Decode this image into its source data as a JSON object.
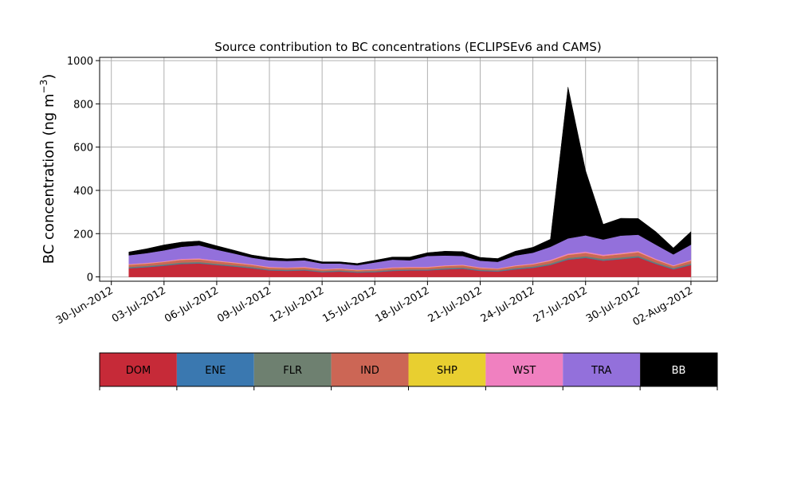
{
  "chart_data": {
    "type": "area",
    "stacked": true,
    "title": "Source contribution to BC concentrations (ECLIPSEv6 and CAMS)",
    "ylabel_main": "BC concentration (ng m",
    "ylabel_sup": "−3",
    "ylabel_close": ")",
    "ylim": [
      -20,
      1015
    ],
    "xlim": [
      "2012-06-29T08:00",
      "2012-08-03T12:00"
    ],
    "grid": true,
    "yticks": [
      0,
      200,
      400,
      600,
      800,
      1000
    ],
    "xticks": [
      {
        "date": "2012-06-30",
        "label": "30-Jun-2012"
      },
      {
        "date": "2012-07-03",
        "label": "03-Jul-2012"
      },
      {
        "date": "2012-07-06",
        "label": "06-Jul-2012"
      },
      {
        "date": "2012-07-09",
        "label": "09-Jul-2012"
      },
      {
        "date": "2012-07-12",
        "label": "12-Jul-2012"
      },
      {
        "date": "2012-07-15",
        "label": "15-Jul-2012"
      },
      {
        "date": "2012-07-18",
        "label": "18-Jul-2012"
      },
      {
        "date": "2012-07-21",
        "label": "21-Jul-2012"
      },
      {
        "date": "2012-07-24",
        "label": "24-Jul-2012"
      },
      {
        "date": "2012-07-27",
        "label": "27-Jul-2012"
      },
      {
        "date": "2012-07-30",
        "label": "30-Jul-2012"
      },
      {
        "date": "2012-08-02",
        "label": "02-Aug-2012"
      }
    ],
    "x": [
      "2012-07-01",
      "2012-07-02",
      "2012-07-03",
      "2012-07-04",
      "2012-07-05",
      "2012-07-06",
      "2012-07-07",
      "2012-07-08",
      "2012-07-09",
      "2012-07-10",
      "2012-07-11",
      "2012-07-12",
      "2012-07-13",
      "2012-07-14",
      "2012-07-15",
      "2012-07-16",
      "2012-07-17",
      "2012-07-18",
      "2012-07-19",
      "2012-07-20",
      "2012-07-21",
      "2012-07-22",
      "2012-07-23",
      "2012-07-24",
      "2012-07-25",
      "2012-07-26",
      "2012-07-27",
      "2012-07-28",
      "2012-07-29",
      "2012-07-30",
      "2012-07-31",
      "2012-08-01",
      "2012-08-02"
    ],
    "series": [
      {
        "name": "DOM",
        "color": "#c62a38",
        "values": [
          40,
          45,
          52,
          60,
          62,
          55,
          48,
          40,
          30,
          28,
          30,
          22,
          25,
          20,
          22,
          28,
          30,
          30,
          35,
          38,
          28,
          25,
          35,
          42,
          55,
          80,
          88,
          75,
          82,
          90,
          60,
          35,
          55
        ]
      },
      {
        "name": "ENE",
        "color": "#3a78b0",
        "values": [
          2,
          2,
          2,
          2,
          2,
          2,
          2,
          2,
          2,
          2,
          2,
          2,
          2,
          2,
          2,
          2,
          2,
          2,
          2,
          2,
          2,
          2,
          2,
          2,
          2,
          2,
          2,
          2,
          2,
          2,
          2,
          2,
          2
        ]
      },
      {
        "name": "FLR",
        "color": "#6e8070",
        "values": [
          4,
          4,
          4,
          5,
          5,
          4,
          4,
          4,
          3,
          3,
          3,
          3,
          3,
          3,
          3,
          3,
          3,
          3,
          4,
          4,
          3,
          3,
          4,
          4,
          5,
          6,
          6,
          6,
          6,
          6,
          5,
          4,
          5
        ]
      },
      {
        "name": "IND",
        "color": "#cc6655",
        "values": [
          10,
          10,
          11,
          12,
          12,
          11,
          10,
          9,
          8,
          8,
          8,
          7,
          7,
          6,
          7,
          8,
          8,
          8,
          9,
          9,
          8,
          7,
          9,
          10,
          12,
          14,
          15,
          14,
          15,
          16,
          12,
          9,
          12
        ]
      },
      {
        "name": "SHP",
        "color": "#e8cf30",
        "values": [
          1,
          1,
          1,
          1,
          1,
          1,
          1,
          1,
          1,
          1,
          1,
          1,
          1,
          1,
          1,
          1,
          1,
          1,
          1,
          1,
          1,
          1,
          1,
          1,
          1,
          1,
          1,
          1,
          1,
          1,
          1,
          1,
          1
        ]
      },
      {
        "name": "WST",
        "color": "#f080c0",
        "values": [
          3,
          3,
          3,
          4,
          4,
          3,
          3,
          3,
          3,
          2,
          3,
          2,
          2,
          2,
          2,
          3,
          3,
          3,
          3,
          3,
          3,
          2,
          3,
          3,
          4,
          5,
          5,
          5,
          5,
          5,
          4,
          3,
          4
        ]
      },
      {
        "name": "TRA",
        "color": "#9370db",
        "values": [
          40,
          45,
          50,
          55,
          60,
          50,
          40,
          30,
          30,
          30,
          30,
          25,
          22,
          20,
          30,
          35,
          30,
          50,
          45,
          40,
          30,
          30,
          45,
          50,
          60,
          70,
          75,
          70,
          80,
          75,
          65,
          50,
          70
        ]
      },
      {
        "name": "BB",
        "color": "#000000",
        "values": [
          15,
          20,
          25,
          22,
          20,
          18,
          15,
          12,
          12,
          10,
          10,
          8,
          8,
          8,
          10,
          12,
          15,
          15,
          20,
          20,
          15,
          15,
          20,
          25,
          35,
          700,
          300,
          70,
          80,
          75,
          60,
          30,
          60
        ]
      }
    ],
    "legend": {
      "placement": "bottom colorbar",
      "labels": [
        "DOM",
        "ENE",
        "FLR",
        "IND",
        "SHP",
        "WST",
        "TRA",
        "BB"
      ],
      "text_colors": [
        "#000000",
        "#000000",
        "#000000",
        "#000000",
        "#000000",
        "#000000",
        "#000000",
        "#ffffff"
      ]
    }
  }
}
